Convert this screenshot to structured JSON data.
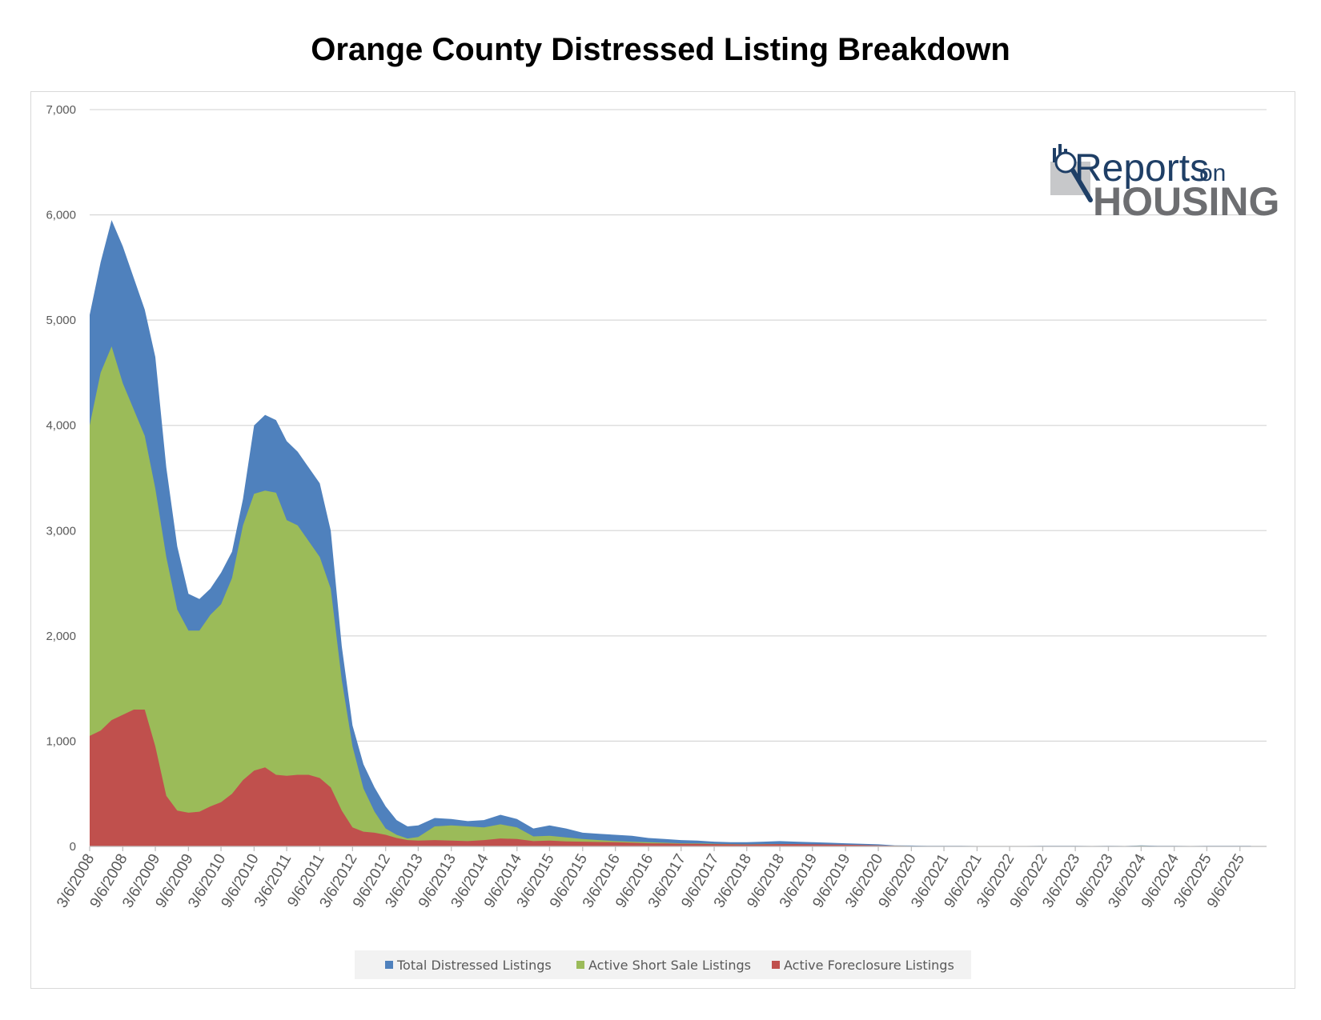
{
  "title": "Orange County Distressed Listing Breakdown",
  "logo": {
    "word_main": "Reports",
    "word_small": "on",
    "word_bottom": "HOUSING"
  },
  "chart_data": {
    "type": "area",
    "title": "Orange County Distressed Listing Breakdown",
    "xlabel": "",
    "ylabel": "",
    "ylim": [
      0,
      7000
    ],
    "yticks": [
      0,
      1000,
      2000,
      3000,
      4000,
      5000,
      6000,
      7000
    ],
    "ytick_labels": [
      "0",
      "1,000",
      "2,000",
      "3,000",
      "4,000",
      "5,000",
      "6,000",
      "7,000"
    ],
    "xlim": [
      "2008-03-06",
      "2026-02-01"
    ],
    "x_tick_labels": [
      "3/6/2008",
      "9/6/2008",
      "3/6/2009",
      "9/6/2009",
      "3/6/2010",
      "9/6/2010",
      "3/6/2011",
      "9/6/2011",
      "3/6/2012",
      "9/6/2012",
      "3/6/2013",
      "9/6/2013",
      "3/6/2014",
      "9/6/2014",
      "3/6/2015",
      "9/6/2015",
      "3/6/2016",
      "9/6/2016",
      "3/6/2017",
      "9/6/2017",
      "3/6/2018",
      "9/6/2018",
      "3/6/2019",
      "9/6/2019",
      "3/6/2020",
      "9/6/2020",
      "3/6/2021",
      "9/6/2021",
      "3/6/2022",
      "9/6/2022",
      "3/6/2023",
      "9/6/2023",
      "3/6/2024",
      "9/6/2024",
      "3/6/2025",
      "9/6/2025"
    ],
    "grid": true,
    "legend_position": "bottom",
    "x": [
      "2008-03-06",
      "2008-05-06",
      "2008-07-06",
      "2008-09-06",
      "2008-11-06",
      "2009-01-06",
      "2009-03-06",
      "2009-05-06",
      "2009-07-06",
      "2009-09-06",
      "2009-11-06",
      "2010-01-06",
      "2010-03-06",
      "2010-05-06",
      "2010-07-06",
      "2010-09-06",
      "2010-11-06",
      "2011-01-06",
      "2011-03-06",
      "2011-05-06",
      "2011-07-06",
      "2011-09-06",
      "2011-11-06",
      "2012-01-06",
      "2012-03-06",
      "2012-05-06",
      "2012-07-06",
      "2012-09-06",
      "2012-11-06",
      "2013-01-06",
      "2013-03-06",
      "2013-06-06",
      "2013-09-06",
      "2013-12-06",
      "2014-03-06",
      "2014-06-06",
      "2014-09-06",
      "2014-12-06",
      "2015-03-06",
      "2015-06-06",
      "2015-09-06",
      "2015-12-06",
      "2016-03-06",
      "2016-06-06",
      "2016-09-06",
      "2016-12-06",
      "2017-03-06",
      "2017-06-06",
      "2017-09-06",
      "2017-12-06",
      "2018-03-06",
      "2018-06-06",
      "2018-09-06",
      "2018-12-06",
      "2019-03-06",
      "2019-06-06",
      "2019-09-06",
      "2019-12-06",
      "2020-03-06",
      "2020-06-06",
      "2020-09-06",
      "2020-12-06",
      "2021-03-06",
      "2021-06-06",
      "2021-09-06",
      "2021-12-06",
      "2022-03-06",
      "2022-06-06",
      "2022-09-06",
      "2022-12-06",
      "2023-03-06",
      "2023-06-06",
      "2023-09-06",
      "2023-12-06",
      "2024-03-06",
      "2024-06-06",
      "2024-09-06",
      "2024-12-06",
      "2025-03-06",
      "2025-06-06",
      "2025-09-06",
      "2025-11-06"
    ],
    "series": [
      {
        "name": "Total Distressed Listings",
        "color": "#4f81bd",
        "values": [
          5050,
          5550,
          5950,
          5700,
          5400,
          5100,
          4650,
          3600,
          2850,
          2400,
          2350,
          2450,
          2600,
          2800,
          3300,
          4000,
          4100,
          4050,
          3850,
          3750,
          3600,
          3450,
          3000,
          1900,
          1150,
          780,
          560,
          380,
          250,
          190,
          200,
          270,
          260,
          240,
          250,
          300,
          260,
          170,
          200,
          170,
          130,
          120,
          110,
          100,
          80,
          70,
          60,
          55,
          45,
          40,
          40,
          45,
          50,
          45,
          40,
          35,
          30,
          25,
          20,
          10,
          8,
          6,
          5,
          5,
          4,
          4,
          3,
          4,
          5,
          6,
          5,
          4,
          5,
          4,
          10,
          6,
          5,
          4,
          5,
          5,
          6,
          5
        ]
      },
      {
        "name": "Active Short Sale Listings",
        "color": "#9bbb59",
        "values": [
          4000,
          4500,
          4750,
          4400,
          4150,
          3900,
          3400,
          2750,
          2250,
          2050,
          2050,
          2200,
          2300,
          2550,
          3050,
          3350,
          3380,
          3360,
          3100,
          3050,
          2900,
          2750,
          2450,
          1580,
          950,
          550,
          330,
          170,
          110,
          75,
          90,
          190,
          200,
          190,
          180,
          210,
          180,
          95,
          100,
          85,
          70,
          60,
          50,
          45,
          40,
          35,
          30,
          28,
          25,
          22,
          20,
          22,
          22,
          20,
          18,
          15,
          12,
          10,
          8,
          5,
          4,
          3,
          3,
          3,
          2,
          2,
          2,
          2,
          3,
          3,
          3,
          3,
          3,
          3,
          5,
          3,
          2,
          2,
          2,
          3,
          3,
          3
        ]
      },
      {
        "name": "Active Foreclosure Listings",
        "color": "#c0504d",
        "values": [
          1050,
          1100,
          1200,
          1250,
          1300,
          1300,
          950,
          480,
          340,
          320,
          330,
          380,
          420,
          500,
          630,
          720,
          750,
          680,
          670,
          680,
          680,
          650,
          560,
          340,
          180,
          140,
          130,
          110,
          80,
          60,
          55,
          60,
          55,
          50,
          60,
          75,
          70,
          50,
          55,
          48,
          45,
          42,
          40,
          35,
          30,
          28,
          26,
          24,
          22,
          20,
          18,
          20,
          22,
          22,
          20,
          18,
          16,
          14,
          10,
          5,
          4,
          3,
          2,
          2,
          2,
          2,
          1,
          1,
          2,
          2,
          2,
          1,
          2,
          1,
          3,
          2,
          2,
          2,
          2,
          2,
          3,
          2
        ]
      }
    ]
  }
}
